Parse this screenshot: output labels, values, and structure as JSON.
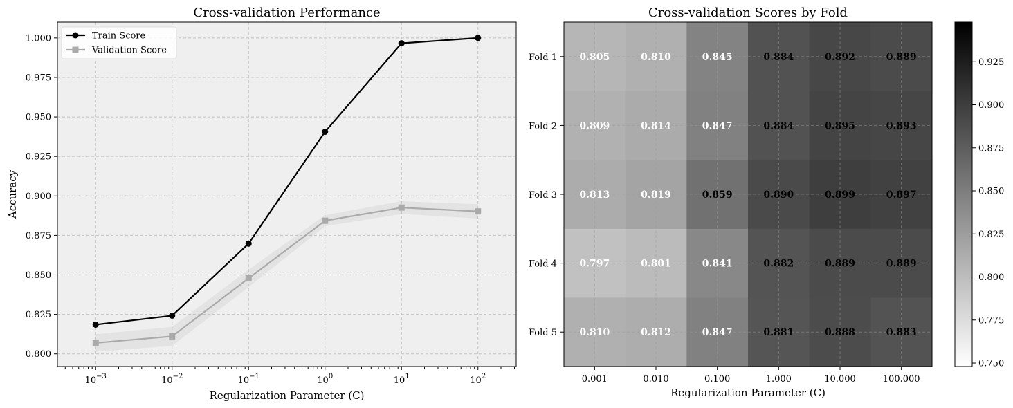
{
  "chart_data": [
    {
      "type": "line",
      "title": "Cross-validation Performance",
      "xlabel": "Regularization Parameter (C)",
      "ylabel": "Accuracy",
      "xscale": "log",
      "x": [
        0.001,
        0.01,
        0.1,
        1,
        10,
        100
      ],
      "xtick_base": "10",
      "xtick_exponents": [
        "−3",
        "−2",
        "−1",
        "0",
        "1",
        "2"
      ],
      "ylim": [
        0.792,
        1.01
      ],
      "yticks": [
        "0.800",
        "0.825",
        "0.850",
        "0.875",
        "0.900",
        "0.925",
        "0.950",
        "0.975",
        "1.000"
      ],
      "grid": true,
      "legend_position": "top-left",
      "series": [
        {
          "name": "Train Score",
          "values": [
            0.8185,
            0.8242,
            0.8698,
            0.9406,
            0.9966,
            1.0
          ],
          "color": "#000000",
          "marker": "circle"
        },
        {
          "name": "Validation Score",
          "values": [
            0.8069,
            0.8111,
            0.8478,
            0.8843,
            0.8926,
            0.8902
          ],
          "std": [
            0.0055,
            0.006,
            0.0055,
            0.0035,
            0.004,
            0.0045
          ],
          "color": "#aaaaaa",
          "marker": "square"
        }
      ]
    },
    {
      "type": "heatmap",
      "title": "Cross-validation Scores by Fold",
      "xlabel": "Regularization Parameter (C)",
      "x_categories": [
        "0.001",
        "0.010",
        "0.100",
        "1.000",
        "10.000",
        "100.000"
      ],
      "y_categories": [
        "Fold 1",
        "Fold 2",
        "Fold 3",
        "Fold 4",
        "Fold 5"
      ],
      "values": [
        [
          0.805,
          0.81,
          0.845,
          0.884,
          0.892,
          0.889
        ],
        [
          0.809,
          0.814,
          0.847,
          0.884,
          0.895,
          0.893
        ],
        [
          0.813,
          0.819,
          0.859,
          0.89,
          0.899,
          0.897
        ],
        [
          0.797,
          0.801,
          0.841,
          0.882,
          0.889,
          0.889
        ],
        [
          0.81,
          0.812,
          0.847,
          0.881,
          0.888,
          0.883
        ]
      ],
      "colormap": "Greys",
      "colorbar_range": [
        0.748,
        0.948
      ],
      "colorbar_ticks": [
        "0.750",
        "0.775",
        "0.800",
        "0.825",
        "0.850",
        "0.875",
        "0.900",
        "0.925"
      ]
    }
  ]
}
